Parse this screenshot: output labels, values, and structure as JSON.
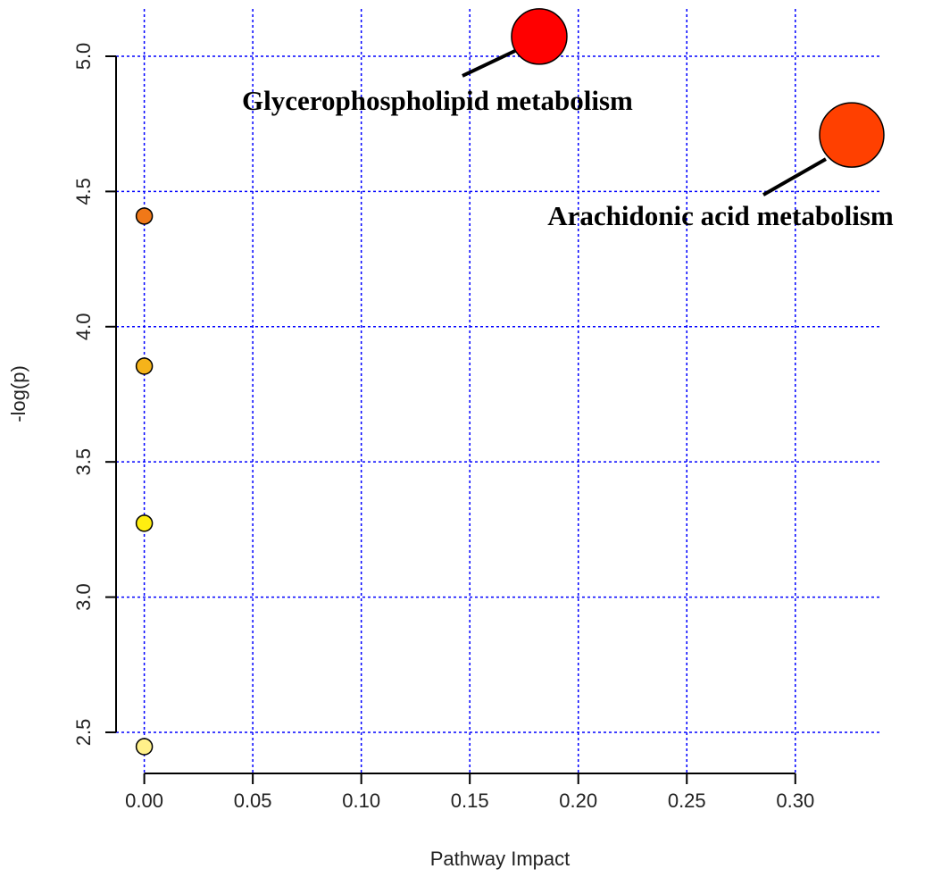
{
  "chart_data": {
    "type": "scatter",
    "x_label": "Pathway Impact",
    "y_label": "-log(p)",
    "x": [
      0.182,
      0.326,
      0,
      0,
      0,
      0
    ],
    "values": [
      5.073,
      4.709,
      4.409,
      3.854,
      3.273,
      2.447
    ],
    "sizes": [
      31,
      36,
      9,
      9,
      9,
      9
    ],
    "colors": [
      "#ff0000",
      "#ff4000",
      "#f07818",
      "#f5b31a",
      "#ffee10",
      "#fff08a"
    ],
    "labels": [
      "Glycerophospholipid metabolism",
      "Arachidonic acid metabolism",
      null,
      null,
      null,
      null
    ],
    "xlim": [
      -0.013,
      0.34
    ],
    "ylim": [
      2.348,
      5.175
    ],
    "xticks": [
      {
        "value": 0,
        "label": "0.00"
      },
      0.05,
      {
        "value": 0.1,
        "label": "0.10"
      },
      0.15,
      {
        "value": 0.2,
        "label": "0.20"
      },
      0.25,
      {
        "value": 0.3,
        "label": "0.30"
      }
    ],
    "yticks": [
      2.5,
      {
        "value": 3,
        "label": "3.0"
      },
      3.5,
      {
        "value": 4,
        "label": "4.0"
      },
      4.5,
      {
        "value": 5,
        "label": "5.0"
      }
    ],
    "grid": true,
    "grid_color": "#0000ff"
  }
}
